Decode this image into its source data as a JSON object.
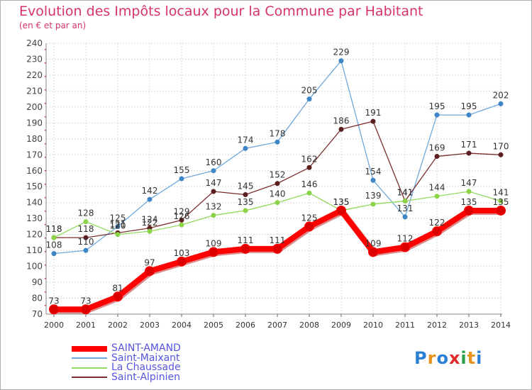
{
  "header": {
    "title": "Evolution des Impôts locaux pour la Commune par Habitant",
    "subtitle": "(en € et par an)"
  },
  "logo": {
    "letters": [
      "P",
      "r",
      "o",
      "x",
      "i",
      "t",
      "i"
    ],
    "colors": [
      "#2a7fd4",
      "#e8931e",
      "#2a7fd4",
      "#e02a2a",
      "#2aa04a",
      "#e8931e",
      "#2a7fd4"
    ]
  },
  "chart_data": {
    "type": "line",
    "title": "Evolution des Impôts locaux pour la Commune par Habitant",
    "subtitle": "(en € et par an)",
    "xlabel": "",
    "ylabel": "",
    "x": [
      "2000",
      "2001",
      "2002",
      "2003",
      "2004",
      "2005",
      "2006",
      "2007",
      "2008",
      "2009",
      "2010",
      "2011",
      "2012",
      "2013",
      "2014"
    ],
    "ylim": [
      70,
      240
    ],
    "yticks": [
      70,
      80,
      90,
      100,
      110,
      120,
      130,
      140,
      150,
      160,
      170,
      180,
      190,
      200,
      210,
      220,
      230,
      240
    ],
    "grid": true,
    "legend_position": "bottom-left",
    "series": [
      {
        "name": "SAINT-AMAND",
        "color": "#ff0000",
        "point_color": "#dd0000",
        "values": [
          73,
          73,
          81,
          97,
          103,
          109,
          111,
          111,
          125,
          135,
          109,
          112,
          122,
          135,
          135
        ]
      },
      {
        "name": "Saint-Maixant",
        "color": "#6fa8dc",
        "point_color": "#3d85c6",
        "values": [
          108,
          110,
          125,
          142,
          155,
          160,
          174,
          178,
          205,
          229,
          154,
          131,
          195,
          195,
          202
        ]
      },
      {
        "name": "La Chaussade",
        "color": "#93d95b",
        "point_color": "#8bd448",
        "values": [
          118,
          128,
          120,
          122,
          126,
          132,
          135,
          140,
          146,
          135,
          139,
          141,
          144,
          147,
          141
        ]
      },
      {
        "name": "Saint-Alpinien",
        "color": "#7a2e2e",
        "point_color": "#5c1f1f",
        "values": [
          118,
          118,
          121,
          124,
          129,
          147,
          145,
          152,
          162,
          186,
          191,
          141,
          169,
          171,
          170
        ]
      }
    ],
    "data_labels": [
      {
        "series": 3,
        "index": 0,
        "text": "118"
      },
      {
        "series": 2,
        "index": 0,
        "text": "118"
      },
      {
        "series": 1,
        "index": 0,
        "text": "108"
      },
      {
        "series": 0,
        "index": 0,
        "text": "73"
      },
      {
        "series": 2,
        "index": 1,
        "text": "128"
      },
      {
        "series": 3,
        "index": 1,
        "text": "118"
      },
      {
        "series": 1,
        "index": 1,
        "text": "110"
      },
      {
        "series": 0,
        "index": 1,
        "text": "73"
      },
      {
        "series": 1,
        "index": 2,
        "text": "125"
      },
      {
        "series": 3,
        "index": 2,
        "text": "121"
      },
      {
        "series": 2,
        "index": 2,
        "text": "120"
      },
      {
        "series": 0,
        "index": 2,
        "text": "81"
      },
      {
        "series": 1,
        "index": 3,
        "text": "142"
      },
      {
        "series": 3,
        "index": 3,
        "text": "124"
      },
      {
        "series": 2,
        "index": 3,
        "text": "122"
      },
      {
        "series": 0,
        "index": 3,
        "text": "97"
      },
      {
        "series": 1,
        "index": 4,
        "text": "155"
      },
      {
        "series": 3,
        "index": 4,
        "text": "129"
      },
      {
        "series": 2,
        "index": 4,
        "text": "126"
      },
      {
        "series": 0,
        "index": 4,
        "text": "103"
      },
      {
        "series": 1,
        "index": 5,
        "text": "160"
      },
      {
        "series": 3,
        "index": 5,
        "text": "147"
      },
      {
        "series": 2,
        "index": 5,
        "text": "132"
      },
      {
        "series": 0,
        "index": 5,
        "text": "109"
      },
      {
        "series": 1,
        "index": 6,
        "text": "174"
      },
      {
        "series": 3,
        "index": 6,
        "text": "145"
      },
      {
        "series": 2,
        "index": 6,
        "text": "135"
      },
      {
        "series": 0,
        "index": 6,
        "text": "111"
      },
      {
        "series": 1,
        "index": 7,
        "text": "178"
      },
      {
        "series": 3,
        "index": 7,
        "text": "152"
      },
      {
        "series": 2,
        "index": 7,
        "text": "140"
      },
      {
        "series": 0,
        "index": 7,
        "text": "111"
      },
      {
        "series": 1,
        "index": 8,
        "text": "205"
      },
      {
        "series": 3,
        "index": 8,
        "text": "162"
      },
      {
        "series": 2,
        "index": 8,
        "text": "146"
      },
      {
        "series": 0,
        "index": 8,
        "text": "125"
      },
      {
        "series": 1,
        "index": 9,
        "text": "229"
      },
      {
        "series": 3,
        "index": 9,
        "text": "186"
      },
      {
        "series": 2,
        "index": 9,
        "text": "135"
      },
      {
        "series": 0,
        "index": 9,
        "text": "135"
      },
      {
        "series": 3,
        "index": 10,
        "text": "191"
      },
      {
        "series": 1,
        "index": 10,
        "text": "154"
      },
      {
        "series": 2,
        "index": 10,
        "text": "139"
      },
      {
        "series": 0,
        "index": 10,
        "text": "109"
      },
      {
        "series": 3,
        "index": 11,
        "text": "141"
      },
      {
        "series": 2,
        "index": 11,
        "text": "141"
      },
      {
        "series": 1,
        "index": 11,
        "text": "131"
      },
      {
        "series": 0,
        "index": 11,
        "text": "112"
      },
      {
        "series": 1,
        "index": 12,
        "text": "195"
      },
      {
        "series": 3,
        "index": 12,
        "text": "169"
      },
      {
        "series": 2,
        "index": 12,
        "text": "144"
      },
      {
        "series": 0,
        "index": 12,
        "text": "122"
      },
      {
        "series": 1,
        "index": 13,
        "text": "195"
      },
      {
        "series": 3,
        "index": 13,
        "text": "171"
      },
      {
        "series": 2,
        "index": 13,
        "text": "147"
      },
      {
        "series": 0,
        "index": 13,
        "text": "135"
      },
      {
        "series": 1,
        "index": 14,
        "text": "202"
      },
      {
        "series": 3,
        "index": 14,
        "text": "170"
      },
      {
        "series": 2,
        "index": 14,
        "text": "141"
      },
      {
        "series": 0,
        "index": 14,
        "text": "135"
      }
    ]
  }
}
